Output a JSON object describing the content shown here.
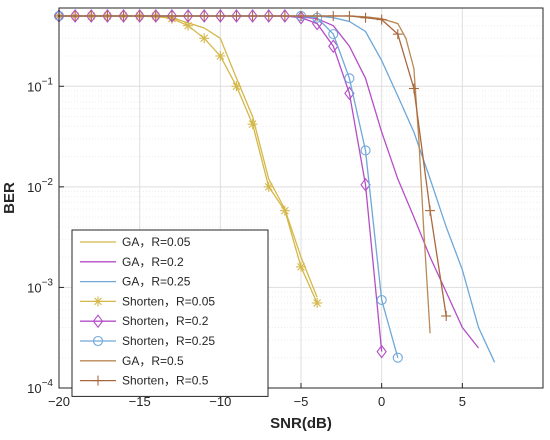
{
  "chart_data": {
    "type": "line",
    "title": "",
    "xlabel": "SNR(dB)",
    "ylabel": "BER",
    "xlim": [
      -20,
      10
    ],
    "ylim": [
      0.0001,
      0.6
    ],
    "yscale": "log",
    "grid": true,
    "legend_position": "bottom-left",
    "x_ticks": [
      {
        "value": -20,
        "label": "−20"
      },
      {
        "value": -15,
        "label": "−15"
      },
      {
        "value": -10,
        "label": "−10"
      },
      {
        "value": -5,
        "label": "−5"
      },
      {
        "value": 0,
        "label": "0"
      },
      {
        "value": 5,
        "label": "5"
      }
    ],
    "y_ticks": [
      {
        "value": 0.0001,
        "base": "10",
        "exp": "−4"
      },
      {
        "value": 0.001,
        "base": "10",
        "exp": "−3"
      },
      {
        "value": 0.01,
        "base": "10",
        "exp": "−2"
      },
      {
        "value": 0.1,
        "base": "10",
        "exp": "−1"
      }
    ],
    "series": [
      {
        "name": "GA，R=0.05",
        "color": "#d4b84a",
        "marker": "none",
        "x": [
          -20,
          -15,
          -13,
          -11,
          -10,
          -9,
          -8,
          -7,
          -6,
          -5,
          -4
        ],
        "y": [
          0.5,
          0.5,
          0.48,
          0.38,
          0.3,
          0.12,
          0.05,
          0.012,
          0.006,
          0.002,
          0.0008
        ]
      },
      {
        "name": "GA，R=0.2",
        "color": "#b44ec7",
        "marker": "none",
        "x": [
          -20,
          -6,
          -5,
          -4,
          -3,
          -2,
          -1,
          0,
          1,
          2,
          3,
          4,
          5,
          6
        ],
        "y": [
          0.5,
          0.5,
          0.49,
          0.47,
          0.4,
          0.25,
          0.12,
          0.035,
          0.012,
          0.005,
          0.002,
          0.0009,
          0.0004,
          0.00025
        ]
      },
      {
        "name": "GA，R=0.25",
        "color": "#6fa8d8",
        "marker": "none",
        "x": [
          -20,
          -4,
          -3,
          -2,
          -1,
          0,
          1,
          2,
          3,
          4,
          5,
          6,
          7
        ],
        "y": [
          0.5,
          0.5,
          0.48,
          0.44,
          0.35,
          0.18,
          0.08,
          0.035,
          0.012,
          0.004,
          0.0015,
          0.0004,
          0.00018
        ]
      },
      {
        "name": "Shorten，R=0.05",
        "color": "#d4b84a",
        "marker": "star",
        "x": [
          -20,
          -19,
          -18,
          -17,
          -16,
          -15,
          -14,
          -13,
          -12,
          -11,
          -10,
          -9,
          -8,
          -7,
          -6,
          -5,
          -4
        ],
        "y": [
          0.5,
          0.5,
          0.5,
          0.5,
          0.5,
          0.5,
          0.5,
          0.47,
          0.4,
          0.3,
          0.2,
          0.1,
          0.042,
          0.01,
          0.0058,
          0.0016,
          0.0007
        ]
      },
      {
        "name": "Shorten，R=0.2",
        "color": "#b44ec7",
        "marker": "diamond",
        "x": [
          -20,
          -19,
          -18,
          -17,
          -16,
          -15,
          -14,
          -13,
          -12,
          -11,
          -10,
          -9,
          -8,
          -7,
          -6,
          -5,
          -4,
          -3,
          -2,
          -1,
          0
        ],
        "y": [
          0.5,
          0.5,
          0.5,
          0.5,
          0.5,
          0.5,
          0.5,
          0.5,
          0.5,
          0.5,
          0.5,
          0.5,
          0.5,
          0.5,
          0.5,
          0.48,
          0.42,
          0.25,
          0.085,
          0.0105,
          0.00023
        ]
      },
      {
        "name": "Shorten，R=0.25",
        "color": "#6fa8d8",
        "marker": "circle",
        "x": [
          -20,
          -5,
          -4,
          -3,
          -2,
          -1,
          0,
          1
        ],
        "y": [
          0.5,
          0.5,
          0.48,
          0.33,
          0.12,
          0.023,
          0.00075,
          0.0002
        ]
      },
      {
        "name": "GA，R=0.5",
        "color": "#b98a56",
        "marker": "none",
        "x": [
          -20,
          -2,
          -1,
          0,
          1,
          1.5,
          2,
          2.3,
          2.6,
          3
        ],
        "y": [
          0.5,
          0.5,
          0.49,
          0.47,
          0.42,
          0.3,
          0.15,
          0.03,
          0.004,
          0.00035
        ]
      },
      {
        "name": "Shorten，R=0.5",
        "color": "#a9683e",
        "marker": "plus",
        "x": [
          -20,
          -19,
          -18,
          -17,
          -16,
          -15,
          -14,
          -13,
          -12,
          -11,
          -10,
          -9,
          -8,
          -7,
          -6,
          -5,
          -4,
          -3,
          -2,
          -1,
          0,
          1,
          2,
          3,
          4
        ],
        "y": [
          0.5,
          0.5,
          0.5,
          0.5,
          0.5,
          0.5,
          0.5,
          0.5,
          0.5,
          0.5,
          0.5,
          0.5,
          0.5,
          0.5,
          0.5,
          0.5,
          0.5,
          0.5,
          0.5,
          0.48,
          0.46,
          0.33,
          0.095,
          0.0058,
          0.00052
        ]
      }
    ]
  }
}
